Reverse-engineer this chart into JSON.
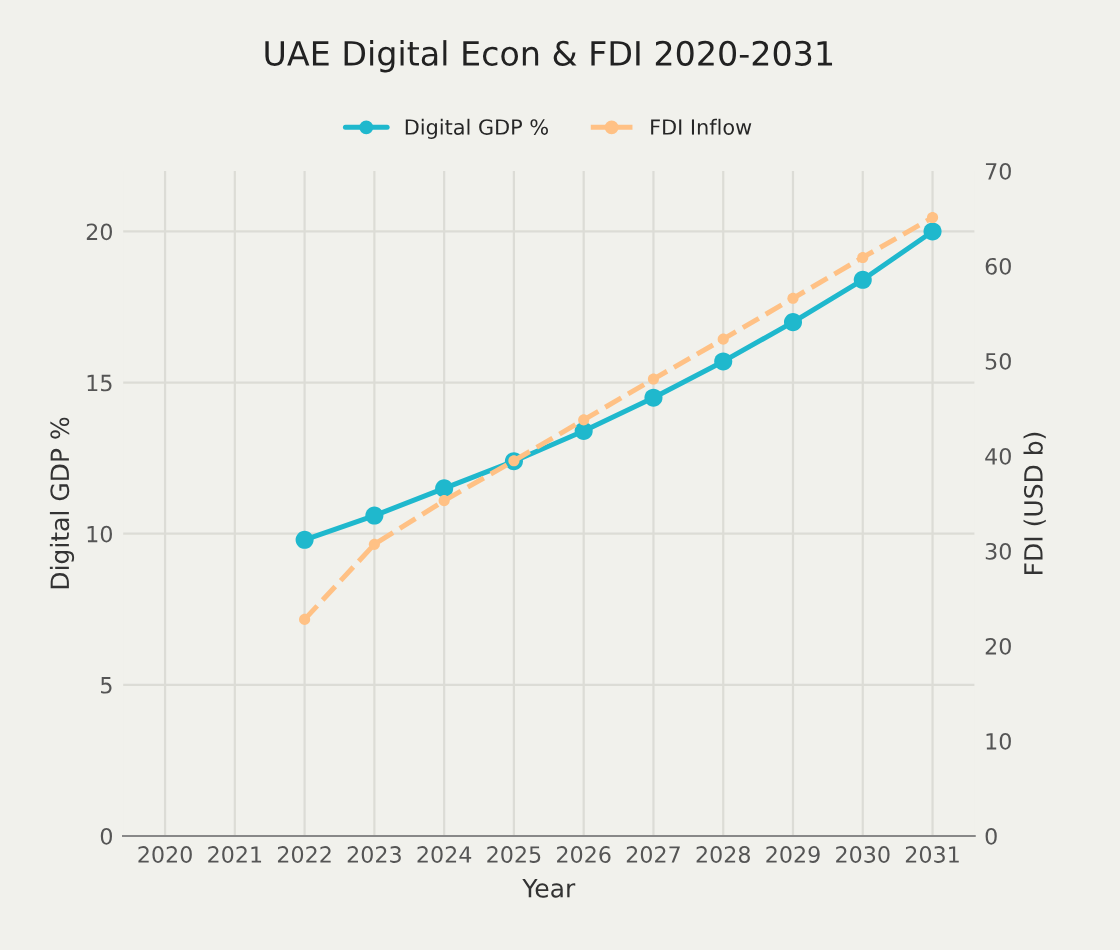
{
  "chart_data": {
    "type": "line",
    "title": "UAE Digital Econ & FDI 2020-2031",
    "xlabel": "Year",
    "ylabel": "Digital GDP %",
    "y2label": "FDI (USD b)",
    "categories": [
      "2020",
      "2021",
      "2022",
      "2023",
      "2024",
      "2025",
      "2026",
      "2027",
      "2028",
      "2029",
      "2030",
      "2031"
    ],
    "series": [
      {
        "name": "Digital GDP %",
        "color": "#1fb8cd",
        "line_style": "solid",
        "values": [
          null,
          null,
          9.8,
          10.6,
          11.5,
          12.4,
          13.4,
          14.5,
          15.7,
          17.0,
          18.4,
          20.0
        ]
      },
      {
        "name": "FDI Inflow",
        "color": "#ffc185",
        "line_style": "dashed",
        "axis": "y2",
        "values": [
          null,
          null,
          22.8,
          30.7,
          35.3,
          39.5,
          43.8,
          48.1,
          52.3,
          56.6,
          60.9,
          65.1
        ]
      }
    ],
    "ylim": [
      0,
      22
    ],
    "yticks": [
      0,
      5,
      10,
      15,
      20
    ],
    "y2lim": [
      0,
      70
    ],
    "y2ticks": [
      0,
      10,
      20,
      30,
      40,
      50,
      60,
      70
    ],
    "grid": true,
    "legend": "top",
    "marker": "circle"
  }
}
